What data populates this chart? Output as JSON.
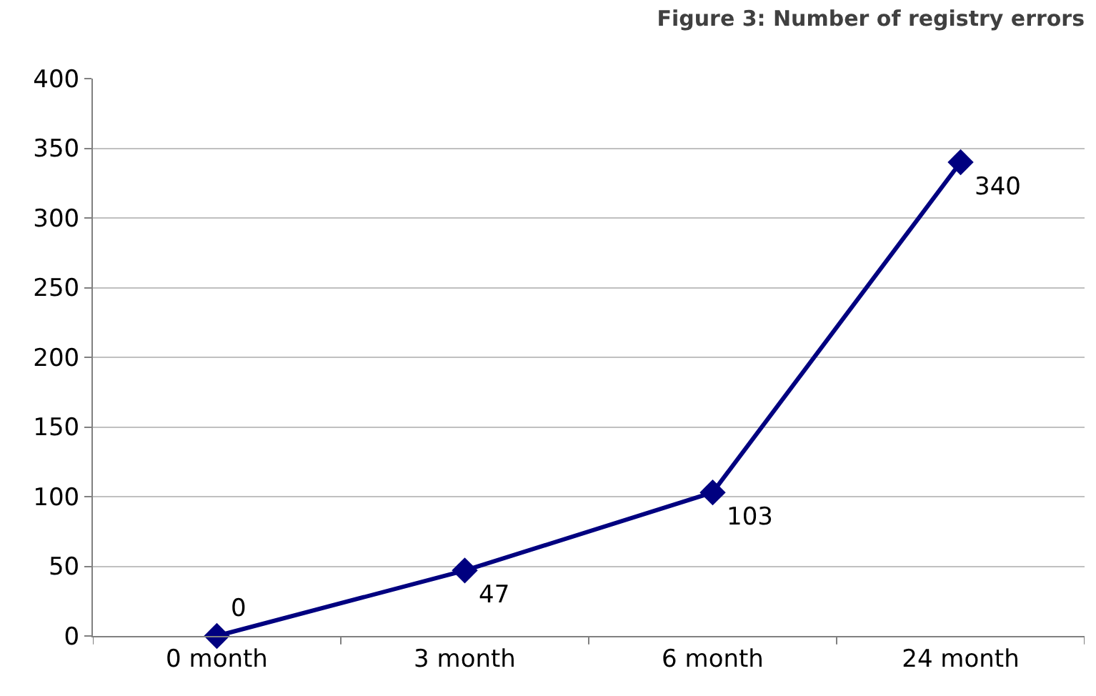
{
  "chart_data": {
    "type": "line",
    "title": "Figure 3: Number of registry errors",
    "categories": [
      "0 month",
      "3 month",
      "6 month",
      "24 month"
    ],
    "series": [
      {
        "color": "#000080",
        "values": [
          0,
          47,
          103,
          340
        ]
      }
    ],
    "ylim": [
      0,
      400
    ],
    "yticks": [
      0,
      50,
      100,
      150,
      200,
      250,
      300,
      350,
      400
    ],
    "grid": "y",
    "marker": "diamond",
    "line_style": "solid",
    "data_labels": true,
    "legend": false
  }
}
